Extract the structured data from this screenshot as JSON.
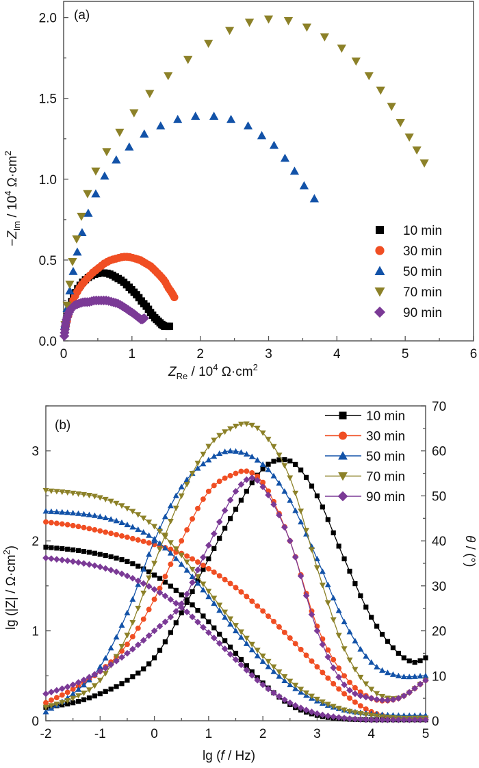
{
  "chart_data": [
    {
      "type": "scatter",
      "panel_label": "(a)",
      "title": "",
      "xlabel": {
        "main": "Z",
        "sub": "Re",
        "rest": " / 10",
        "sup": "4",
        "unit": " Ω·cm",
        "unit_sup": "2"
      },
      "ylabel": {
        "prefix": "−Z",
        "sub": "Im",
        "rest": " / 10",
        "sup": "4",
        "unit": " Ω·cm",
        "unit_sup": "2"
      },
      "xlim": [
        0,
        6
      ],
      "ylim": [
        0,
        2.1
      ],
      "xticks": [
        0,
        1,
        2,
        3,
        4,
        5,
        6
      ],
      "xtick_labels": [
        "0",
        "1",
        "2",
        "3",
        "4",
        "5",
        "6"
      ],
      "yticks": [
        0.0,
        0.5,
        1.0,
        1.5,
        2.0
      ],
      "ytick_labels": [
        "0.0",
        "0.5",
        "1.0",
        "1.5",
        "2.0"
      ],
      "grid": false,
      "legend_position": "bottom-right",
      "series": [
        {
          "name": "10 min",
          "marker": "square",
          "color": "#000000",
          "x": [
            0.02,
            0.05,
            0.09,
            0.14,
            0.2,
            0.27,
            0.35,
            0.44,
            0.53,
            0.62,
            0.7,
            0.78,
            0.86,
            0.94,
            1.01,
            1.08,
            1.15,
            1.22,
            1.28,
            1.34,
            1.39,
            1.44,
            1.48,
            1.52,
            1.55
          ],
          "y": [
            0.08,
            0.15,
            0.21,
            0.27,
            0.32,
            0.36,
            0.39,
            0.41,
            0.42,
            0.42,
            0.41,
            0.39,
            0.37,
            0.34,
            0.31,
            0.28,
            0.24,
            0.21,
            0.17,
            0.14,
            0.12,
            0.1,
            0.09,
            0.09,
            0.09
          ]
        },
        {
          "name": "30 min",
          "marker": "circle",
          "color": "#f04e23",
          "x": [
            0.03,
            0.07,
            0.12,
            0.18,
            0.25,
            0.33,
            0.42,
            0.51,
            0.6,
            0.69,
            0.78,
            0.87,
            0.95,
            1.04,
            1.12,
            1.2,
            1.28,
            1.35,
            1.42,
            1.48,
            1.53,
            1.58,
            1.62
          ],
          "y": [
            0.09,
            0.16,
            0.23,
            0.29,
            0.34,
            0.38,
            0.42,
            0.45,
            0.48,
            0.5,
            0.51,
            0.52,
            0.52,
            0.51,
            0.5,
            0.48,
            0.46,
            0.43,
            0.4,
            0.37,
            0.33,
            0.3,
            0.27
          ]
        },
        {
          "name": "50 min",
          "marker": "triangle-up",
          "color": "#1252a8",
          "x": [
            0.02,
            0.05,
            0.09,
            0.14,
            0.2,
            0.27,
            0.36,
            0.47,
            0.6,
            0.77,
            0.96,
            1.18,
            1.42,
            1.67,
            1.93,
            2.2,
            2.45,
            2.7,
            2.9,
            3.08,
            3.24,
            3.38,
            3.52,
            3.67
          ],
          "y": [
            0.1,
            0.2,
            0.31,
            0.43,
            0.55,
            0.67,
            0.79,
            0.91,
            1.02,
            1.12,
            1.2,
            1.28,
            1.33,
            1.37,
            1.39,
            1.39,
            1.37,
            1.33,
            1.27,
            1.21,
            1.13,
            1.05,
            0.96,
            0.88
          ]
        },
        {
          "name": "70 min",
          "marker": "triangle-down",
          "color": "#8c8128",
          "x": [
            0.02,
            0.05,
            0.09,
            0.13,
            0.19,
            0.26,
            0.35,
            0.47,
            0.63,
            0.82,
            1.03,
            1.26,
            1.53,
            1.82,
            2.12,
            2.43,
            2.72,
            3.0,
            3.29,
            3.56,
            3.82,
            4.07,
            4.28,
            4.47,
            4.64,
            4.8,
            4.93,
            5.06,
            5.17,
            5.28
          ],
          "y": [
            0.1,
            0.22,
            0.35,
            0.49,
            0.63,
            0.77,
            0.91,
            1.05,
            1.17,
            1.29,
            1.41,
            1.53,
            1.64,
            1.74,
            1.84,
            1.92,
            1.97,
            1.99,
            1.98,
            1.94,
            1.88,
            1.81,
            1.73,
            1.64,
            1.55,
            1.45,
            1.35,
            1.26,
            1.18,
            1.1
          ]
        },
        {
          "name": "90 min",
          "marker": "diamond",
          "color": "#7b3a96",
          "x": [
            0.01,
            0.02,
            0.04,
            0.07,
            0.11,
            0.16,
            0.22,
            0.29,
            0.37,
            0.45,
            0.54,
            0.63,
            0.72,
            0.8,
            0.88,
            0.95,
            1.02,
            1.08,
            1.14,
            1.18
          ],
          "y": [
            0.03,
            0.08,
            0.13,
            0.17,
            0.2,
            0.22,
            0.23,
            0.24,
            0.24,
            0.25,
            0.25,
            0.25,
            0.24,
            0.23,
            0.21,
            0.19,
            0.17,
            0.15,
            0.13,
            0.14
          ]
        }
      ]
    },
    {
      "type": "line",
      "panel_label": "(b)",
      "title": "",
      "xlabel": {
        "prefix": "lg (",
        "italic": "f",
        "rest": " / Hz)"
      },
      "ylabel_left": {
        "text": "lg (|Z| / Ω·cm",
        "sup": "2",
        "close": ")"
      },
      "ylabel_right": {
        "italic": "θ",
        "rest": " / (°)"
      },
      "xlim": [
        -2,
        5
      ],
      "ylim_left": [
        0,
        3.5
      ],
      "ylim_right": [
        0,
        70
      ],
      "xticks": [
        -2,
        -1,
        0,
        1,
        2,
        3,
        4,
        5
      ],
      "xtick_labels": [
        "-2",
        "-1",
        "0",
        "1",
        "2",
        "3",
        "4",
        "5"
      ],
      "yticks_left": [
        0,
        1,
        2,
        3
      ],
      "ytick_labels_left": [
        "0",
        "1",
        "2",
        "3"
      ],
      "yticks_right": [
        0,
        10,
        20,
        30,
        40,
        50,
        60,
        70
      ],
      "ytick_labels_right": [
        "0",
        "10",
        "20",
        "30",
        "40",
        "50",
        "60",
        "70"
      ],
      "grid": false,
      "legend_position": "top-right",
      "series": [
        {
          "name": "10 min",
          "marker": "square",
          "color": "#000000",
          "modulus": {
            "x": [
              -2,
              -1.5,
              -1,
              -0.5,
              0,
              0.5,
              1,
              1.5,
              2,
              2.5,
              3,
              3.5,
              4,
              4.5,
              5
            ],
            "y": [
              1.93,
              1.9,
              1.85,
              1.77,
              1.62,
              1.4,
              1.1,
              0.75,
              0.42,
              0.18,
              0.06,
              0.02,
              0.01,
              0.01,
              0.01
            ]
          },
          "phase": {
            "x": [
              -2,
              -1.5,
              -1,
              -0.5,
              0,
              0.5,
              1,
              1.5,
              2,
              2.3,
              2.6,
              3,
              3.5,
              4,
              4.5,
              4.8,
              5
            ],
            "y": [
              3,
              4,
              6,
              9,
              14,
              24,
              36,
              47,
              56,
              58,
              57,
              50,
              36,
              23,
              15,
              13,
              14
            ]
          }
        },
        {
          "name": "30 min",
          "marker": "circle",
          "color": "#f04e23",
          "modulus": {
            "x": [
              -2,
              -1.5,
              -1,
              -0.5,
              0,
              0.5,
              1,
              1.5,
              2,
              2.5,
              3,
              3.5,
              4,
              4.5,
              5
            ],
            "y": [
              2.21,
              2.17,
              2.11,
              2.04,
              1.96,
              1.86,
              1.69,
              1.48,
              1.22,
              0.92,
              0.6,
              0.3,
              0.1,
              0.03,
              0.02
            ]
          },
          "phase": {
            "x": [
              -2,
              -1.5,
              -1,
              -0.5,
              0,
              0.5,
              1,
              1.5,
              1.7,
              2,
              2.5,
              3,
              3.5,
              4,
              4.5,
              5
            ],
            "y": [
              4,
              7,
              11,
              17,
              27,
              40,
              51,
              55,
              55.5,
              53,
              40,
              21,
              10,
              5,
              5,
              9
            ]
          }
        },
        {
          "name": "50 min",
          "marker": "triangle-up",
          "color": "#1252a8",
          "modulus": {
            "x": [
              -2,
              -1.5,
              -1,
              -0.5,
              0,
              0.5,
              1,
              1.5,
              2,
              2.5,
              3,
              3.5,
              4,
              4.5,
              5
            ],
            "y": [
              2.33,
              2.31,
              2.27,
              2.18,
              2.02,
              1.74,
              1.38,
              1.0,
              0.66,
              0.4,
              0.22,
              0.12,
              0.08,
              0.06,
              0.06
            ]
          },
          "phase": {
            "x": [
              -2,
              -1.5,
              -1,
              -0.5,
              0,
              0.5,
              1,
              1.4,
              2,
              2.5,
              3,
              3.5,
              4,
              4.5,
              5
            ],
            "y": [
              2,
              6,
              12,
              24,
              40,
              52,
              58,
              60,
              57,
              49,
              36,
              22,
              13,
              10,
              10
            ]
          }
        },
        {
          "name": "70 min",
          "marker": "triangle-down",
          "color": "#8c8128",
          "modulus": {
            "x": [
              -2,
              -1.5,
              -1,
              -0.5,
              0,
              0.5,
              1,
              1.5,
              2,
              2.5,
              3,
              3.5,
              4,
              4.5,
              5
            ],
            "y": [
              2.56,
              2.53,
              2.48,
              2.36,
              2.16,
              1.84,
              1.44,
              1.06,
              0.72,
              0.44,
              0.24,
              0.12,
              0.06,
              0.03,
              0.03
            ]
          },
          "phase": {
            "x": [
              -2,
              -1.5,
              -1,
              -0.5,
              0,
              0.5,
              1,
              1.5,
              1.7,
              2,
              2.5,
              3,
              3.5,
              4,
              4.5,
              5
            ],
            "y": [
              3,
              5,
              9,
              19,
              35,
              50,
              61,
              65.5,
              66,
              64,
              54,
              34,
              16,
              7,
              5,
              9
            ]
          }
        },
        {
          "name": "90 min",
          "marker": "diamond",
          "color": "#7b3a96",
          "modulus": {
            "x": [
              -2,
              -1.5,
              -1,
              -0.5,
              0,
              0.5,
              1,
              1.5,
              2,
              2.5,
              3,
              3.5,
              4,
              4.5,
              5
            ],
            "y": [
              1.81,
              1.77,
              1.71,
              1.61,
              1.46,
              1.26,
              0.98,
              0.68,
              0.4,
              0.2,
              0.08,
              0.03,
              0.01,
              0.01,
              0.01
            ]
          },
          "phase": {
            "x": [
              -2,
              -1.5,
              -1,
              -0.5,
              0,
              0.5,
              1,
              1.5,
              1.8,
              2,
              2.5,
              3,
              3.5,
              4,
              4.5,
              5
            ],
            "y": [
              6,
              8,
              11,
              15,
              20,
              26,
              39,
              51,
              54,
              52,
              40,
              20,
              8,
              5,
              5,
              9
            ]
          }
        }
      ]
    }
  ]
}
